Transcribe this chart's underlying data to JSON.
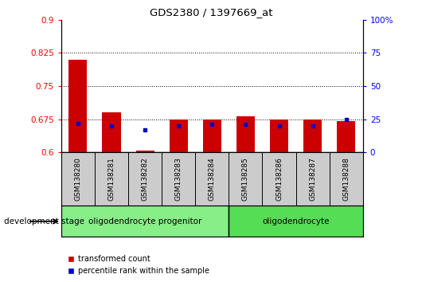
{
  "title": "GDS2380 / 1397669_at",
  "samples": [
    "GSM138280",
    "GSM138281",
    "GSM138282",
    "GSM138283",
    "GSM138284",
    "GSM138285",
    "GSM138286",
    "GSM138287",
    "GSM138288"
  ],
  "transformed_count": [
    0.81,
    0.69,
    0.603,
    0.675,
    0.675,
    0.682,
    0.675,
    0.675,
    0.67
  ],
  "percentile_rank": [
    22,
    20,
    17,
    20,
    21,
    21,
    20,
    20,
    25
  ],
  "ylim_left": [
    0.6,
    0.9
  ],
  "ylim_right": [
    0,
    100
  ],
  "yticks_left": [
    0.6,
    0.675,
    0.75,
    0.825,
    0.9
  ],
  "yticks_right": [
    0,
    25,
    50,
    75,
    100
  ],
  "bar_color": "#cc0000",
  "dot_color": "#0000cc",
  "groups": [
    {
      "label": "oligodendrocyte progenitor",
      "indices": [
        0,
        1,
        2,
        3,
        4
      ],
      "color": "#88ee88"
    },
    {
      "label": "oligodendrocyte",
      "indices": [
        5,
        6,
        7,
        8
      ],
      "color": "#55dd55"
    }
  ],
  "group_label": "development stage",
  "legend_items": [
    {
      "label": "transformed count",
      "color": "#cc0000"
    },
    {
      "label": "percentile rank within the sample",
      "color": "#0000cc"
    }
  ],
  "bar_width": 0.55,
  "baseline": 0.6,
  "background_color": "#ffffff",
  "label_bg_color": "#cccccc",
  "hlines": [
    0.675,
    0.75,
    0.825
  ]
}
